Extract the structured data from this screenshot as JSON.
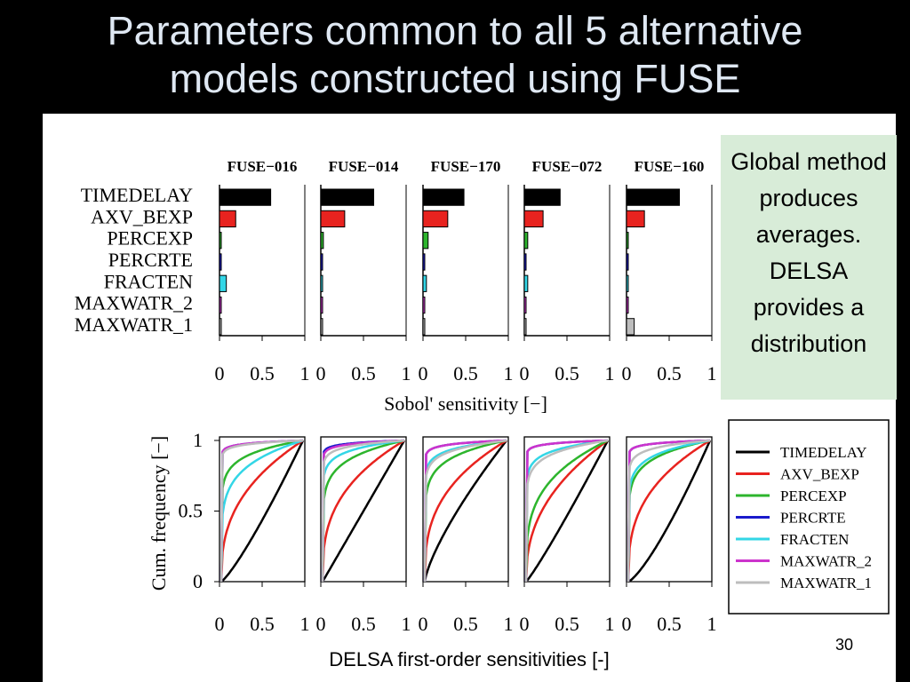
{
  "slide": {
    "title_line1": "Parameters common to all 5 alternative",
    "title_line2": "models constructed using FUSE",
    "callout": "Global method produces averages. DELSA provides a distribution",
    "slide_number": "30",
    "footer_label": "DELSA first-order sensitivities [-]"
  },
  "chart_data": [
    {
      "type": "bar",
      "orientation": "horizontal",
      "panels": [
        "FUSE−016",
        "FUSE−014",
        "FUSE−170",
        "FUSE−072",
        "FUSE−160"
      ],
      "categories": [
        "TIMEDELAY",
        "AXV_BEXP",
        "PERCEXP",
        "PERCRTE",
        "FRACTEN",
        "MAXWATR_2",
        "MAXWATR_1"
      ],
      "colors": [
        "#000000",
        "#e8231f",
        "#2db52d",
        "#1a1acc",
        "#33d6e6",
        "#cc33cc",
        "#bdbdbd"
      ],
      "values": [
        [
          0.6,
          0.19,
          0.02,
          0.0,
          0.08,
          0.0,
          0.01
        ],
        [
          0.62,
          0.28,
          0.03,
          0.0,
          0.02,
          0.0,
          0.01
        ],
        [
          0.48,
          0.29,
          0.06,
          0.0,
          0.04,
          0.0,
          0.01
        ],
        [
          0.42,
          0.22,
          0.04,
          0.01,
          0.04,
          0.0,
          0.01
        ],
        [
          0.62,
          0.21,
          0.01,
          0.0,
          0.01,
          0.01,
          0.09
        ]
      ],
      "xlabel": "Sobol' sensitivity [−]",
      "xlim": [
        0,
        1
      ],
      "xticks": [
        "0",
        "0.5",
        "1"
      ]
    },
    {
      "type": "line",
      "series_names": [
        "TIMEDELAY",
        "AXV_BEXP",
        "PERCEXP",
        "PERCRTE",
        "FRACTEN",
        "MAXWATR_2",
        "MAXWATR_1"
      ],
      "colors": [
        "#000000",
        "#e8231f",
        "#2db52d",
        "#1a1acc",
        "#33d6e6",
        "#cc33cc",
        "#bdbdbd"
      ],
      "curve_exponents": [
        [
          1.2,
          0.38,
          0.1,
          0.02,
          0.18,
          0.02,
          0.025
        ],
        [
          1.0,
          0.35,
          0.13,
          0.02,
          0.07,
          0.025,
          0.04
        ],
        [
          0.75,
          0.35,
          0.12,
          0.025,
          0.06,
          0.025,
          0.07
        ],
        [
          1.1,
          0.42,
          0.28,
          0.02,
          0.07,
          0.02,
          0.09
        ],
        [
          1.3,
          0.35,
          0.12,
          0.02,
          0.1,
          0.02,
          0.05
        ]
      ],
      "ylabel": "Cum. frequency [−]",
      "xlim": [
        0,
        1
      ],
      "ylim": [
        0,
        1
      ],
      "xticks": [
        "0",
        "0.5",
        "1"
      ],
      "yticks": [
        "0",
        "0.5",
        "1"
      ],
      "legend": [
        "TIMEDELAY",
        "AXV_BEXP",
        "PERCEXP",
        "PERCRTE",
        "FRACTEN",
        "MAXWATR_2",
        "MAXWATR_1"
      ],
      "legend_position": "right"
    }
  ]
}
